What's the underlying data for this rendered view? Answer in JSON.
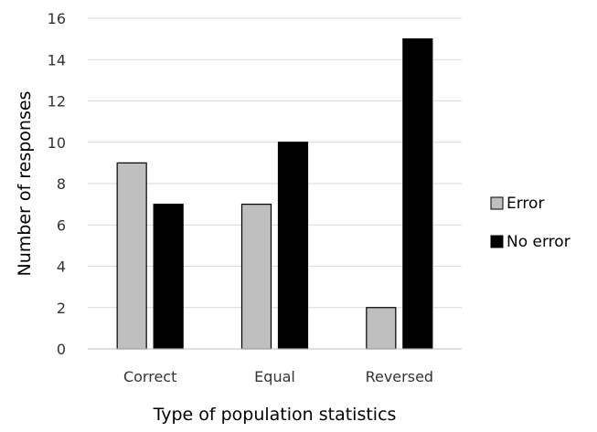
{
  "chart_data": {
    "type": "bar",
    "title": "",
    "xlabel": "Type of population statistics",
    "ylabel": "Number of responses",
    "categories": [
      "Correct",
      "Equal",
      "Reversed"
    ],
    "series": [
      {
        "name": "Error",
        "values": [
          9,
          7,
          2
        ],
        "color": "#bfbfbf"
      },
      {
        "name": "No error",
        "values": [
          7,
          10,
          15
        ],
        "color": "#000000"
      }
    ],
    "ylim": [
      0,
      16
    ],
    "yticks": [
      0,
      2,
      4,
      6,
      8,
      10,
      12,
      14,
      16
    ],
    "grid": true,
    "legend_position": "right"
  }
}
